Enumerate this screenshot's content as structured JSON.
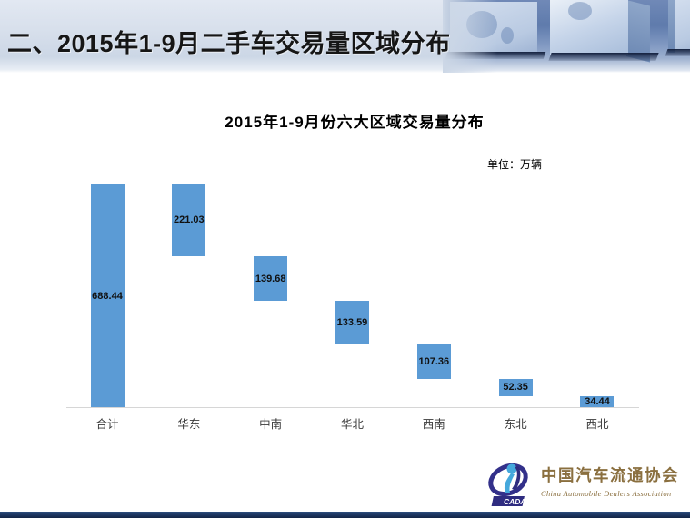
{
  "header": {
    "title": "二、2015年1-9月二手车交易量区域分布"
  },
  "chart_data": {
    "type": "bar",
    "subtype": "waterfall",
    "title": "2015年1-9月份六大区域交易量分布",
    "unit_label": "单位：万辆",
    "unit": "万辆",
    "categories": [
      "合计",
      "华东",
      "中南",
      "华北",
      "西南",
      "东北",
      "西北"
    ],
    "values": [
      688.44,
      221.03,
      139.68,
      133.59,
      107.36,
      52.35,
      34.44
    ],
    "total_category": "合计",
    "value_label_position": "inside-center",
    "grid": false,
    "legend": "none",
    "ylim": [
      0,
      688.44
    ],
    "bar_color": "#5b9bd5",
    "value_label_color": "#101010",
    "axis_line_color": "#d6d6d6"
  },
  "footer": {
    "logo": {
      "emblem_text": "CADA",
      "org_name_cn": "中国汽车流通协会",
      "org_name_en": "China Automobile Dealers Association"
    }
  }
}
